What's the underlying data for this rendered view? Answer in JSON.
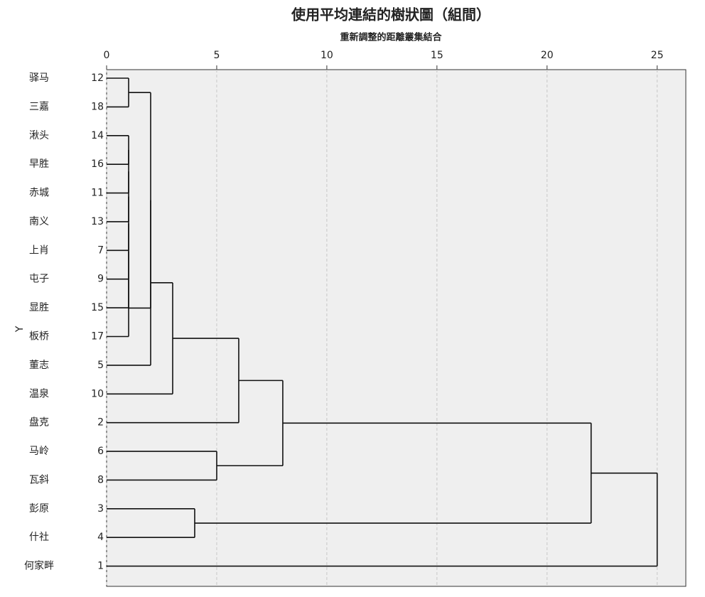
{
  "chart_data": {
    "type": "dendrogram",
    "title": "使用平均連結的樹狀圖（組間）",
    "x_label": "重新調整的距離叢集結合",
    "y_label": "Y",
    "xlim": [
      0,
      26.3
    ],
    "xticks": [
      0,
      5,
      10,
      15,
      20,
      25
    ],
    "grid": true,
    "background": "#efefef",
    "color": "#111111",
    "tree": {
      "height": 25,
      "children": [
        {
          "height": 22,
          "children": [
            {
              "height": 8,
              "children": [
                {
                  "height": 6,
                  "children": [
                    {
                      "height": 3,
                      "children": [
                        {
                          "height": 2,
                          "children": [
                            {
                              "height": 2,
                              "children": [
                                {
                                  "height": 1,
                                  "children": [
                                    {
                                      "name": "驿马",
                                      "case": "12"
                                    },
                                    {
                                      "name": "三嘉",
                                      "case": "18"
                                    }
                                  ]
                                },
                                {
                                  "height": 1,
                                  "children": [
                                    {
                                      "height": 1,
                                      "children": [
                                        {
                                          "height": 1,
                                          "children": [
                                            {
                                              "height": 1,
                                              "children": [
                                                {
                                                  "height": 1,
                                                  "children": [
                                                    {
                                                      "height": 1,
                                                      "children": [
                                                        {
                                                          "height": 1,
                                                          "children": [
                                                            {
                                                              "name": "湫头",
                                                              "case": "14"
                                                            },
                                                            {
                                                              "name": "早胜",
                                                              "case": "16"
                                                            }
                                                          ]
                                                        },
                                                        {
                                                          "name": "赤城",
                                                          "case": "11"
                                                        }
                                                      ]
                                                    },
                                                    {
                                                      "name": "南义",
                                                      "case": "13"
                                                    }
                                                  ]
                                                },
                                                {
                                                  "name": "上肖",
                                                  "case": "7"
                                                }
                                              ]
                                            },
                                            {
                                              "name": "屯子",
                                              "case": "9"
                                            }
                                          ]
                                        },
                                        {
                                          "name": "显胜",
                                          "case": "15"
                                        }
                                      ]
                                    },
                                    {
                                      "name": "板桥",
                                      "case": "17"
                                    }
                                  ]
                                }
                              ]
                            },
                            {
                              "name": "董志",
                              "case": "5"
                            }
                          ]
                        },
                        {
                          "name": "温泉",
                          "case": "10"
                        }
                      ]
                    },
                    {
                      "name": "盘克",
                      "case": "2"
                    }
                  ]
                },
                {
                  "height": 5,
                  "children": [
                    {
                      "name": "马岭",
                      "case": "6"
                    },
                    {
                      "name": "瓦斜",
                      "case": "8"
                    }
                  ]
                }
              ]
            },
            {
              "height": 4,
              "children": [
                {
                  "name": "彭原",
                  "case": "3"
                },
                {
                  "name": "什社",
                  "case": "4"
                }
              ]
            }
          ]
        },
        {
          "name": "何家畔",
          "case": "1"
        }
      ]
    }
  }
}
